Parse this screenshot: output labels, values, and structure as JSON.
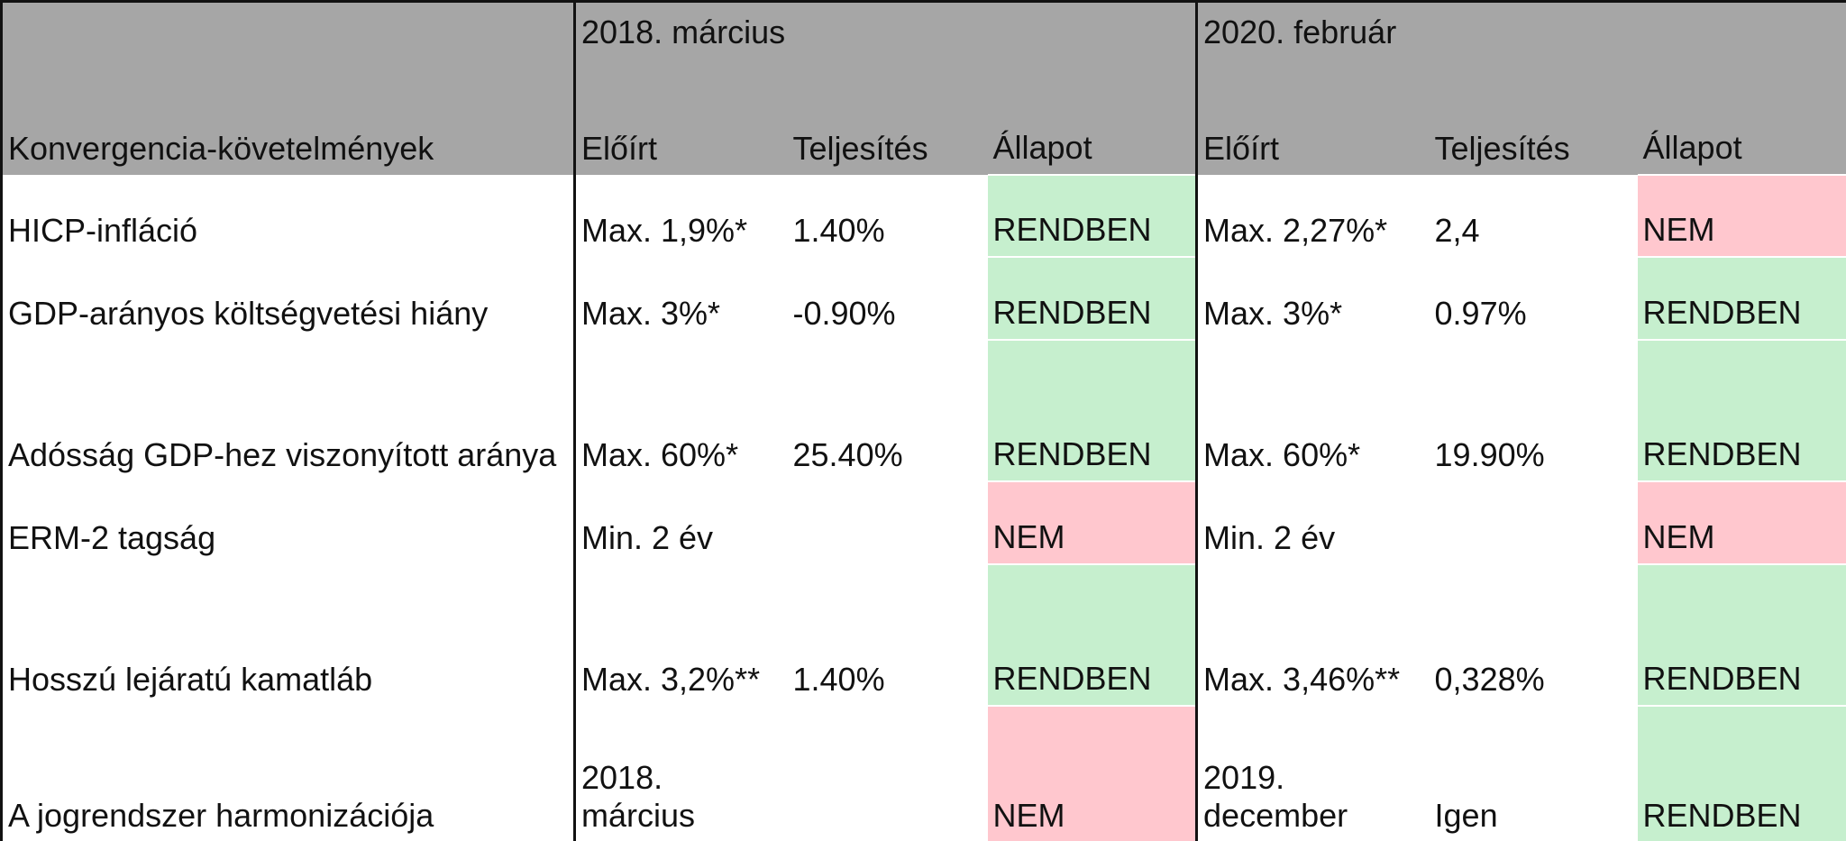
{
  "header": {
    "subject": "Konvergencia-követelmények",
    "periods": [
      {
        "label": "2018. március",
        "columns": [
          "Előírt",
          "Teljesítés",
          "Állapot"
        ]
      },
      {
        "label": "2020. február",
        "columns": [
          "Előírt",
          "Teljesítés",
          "Állapot"
        ]
      }
    ]
  },
  "table": {
    "rows": [
      [
        "HICP-infláció",
        "Max. 1,9%*",
        "1.40%",
        "RENDBEN",
        "Max. 2,27%*",
        "2,4",
        "NEM"
      ],
      [
        "GDP-arányos költségvetési hiány",
        "Max. 3%*",
        "-0.90%",
        "RENDBEN",
        "Max. 3%*",
        "0.97%",
        "RENDBEN"
      ],
      [
        "Adósság GDP-hez viszonyított aránya",
        "Max. 60%*",
        "25.40%",
        "RENDBEN",
        "Max. 60%*",
        "19.90%",
        "RENDBEN"
      ],
      [
        "ERM-2 tagság",
        "Min. 2 év",
        null,
        "NEM",
        "Min. 2 év",
        null,
        "NEM"
      ],
      [
        "Hosszú lejáratú kamatláb",
        "Max. 3,2%**",
        "1.40%",
        "RENDBEN",
        "Max. 3,46%**",
        "0,328%",
        "RENDBEN"
      ],
      [
        "A jogrendszer harmonizációja",
        "2018. március",
        null,
        "NEM",
        "2019. december",
        "Igen",
        "RENDBEN"
      ]
    ],
    "status_fills": [
      [
        "#c6efce",
        "#ffc7ce"
      ],
      [
        "#c6efce",
        "#c6efce"
      ],
      [
        "#c6efce",
        "#c6efce"
      ],
      [
        "#ffc7ce",
        "#ffc7ce"
      ],
      [
        "#c6efce",
        "#c6efce"
      ],
      [
        "#ffc7ce",
        "#c6efce"
      ]
    ]
  }
}
